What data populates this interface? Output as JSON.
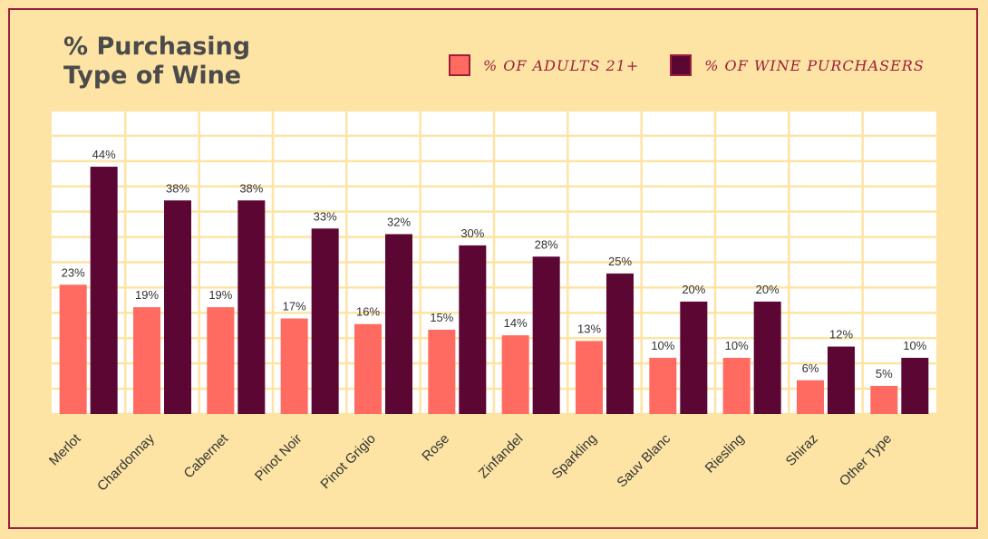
{
  "title_lines": [
    "% Purchasing",
    "Type of Wine"
  ],
  "legend": [
    {
      "label": "% OF ADULTS 21+",
      "color": "#ff6b61"
    },
    {
      "label": "% OF WINE PURCHASERS",
      "color": "#5c0634"
    }
  ],
  "colors": {
    "background": "#fde4a4",
    "plot_background": "#ffffff",
    "grid": "#fde4a4",
    "frame": "#9c1f3a",
    "label_text": "#333333"
  },
  "chart_data": {
    "type": "bar",
    "categories": [
      "Merlot",
      "Chardonnay",
      "Cabernet",
      "Pinot Noir",
      "Pinot Grigio",
      "Rose",
      "Zinfandel",
      "Sparkling",
      "Sauv Blanc",
      "Riesling",
      "Shiraz",
      "Other Type"
    ],
    "series": [
      {
        "name": "% OF ADULTS 21+",
        "values": [
          23,
          19,
          19,
          17,
          16,
          15,
          14,
          13,
          10,
          10,
          6,
          5
        ],
        "labels": [
          "23%",
          "19%",
          "19%",
          "17%",
          "16%",
          "15%",
          "14%",
          "13%",
          "10%",
          "10%",
          "6%",
          "5%"
        ]
      },
      {
        "name": "% OF WINE PURCHASERS",
        "values": [
          44,
          38,
          38,
          33,
          32,
          30,
          28,
          25,
          20,
          20,
          12,
          10
        ],
        "labels": [
          "44%",
          "38%",
          "38%",
          "33%",
          "32%",
          "30%",
          "28%",
          "25%",
          "20%",
          "20%",
          "12%",
          "10%"
        ]
      }
    ],
    "ylim": [
      0,
      54
    ],
    "grid": true,
    "legend_position": "top-right"
  }
}
